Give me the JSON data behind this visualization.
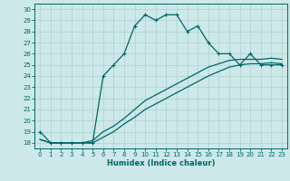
{
  "title": "",
  "xlabel": "Humidex (Indice chaleur)",
  "ylabel": "",
  "bg_color": "#cce8e8",
  "grid_color": "#b0d0d0",
  "line_color": "#006666",
  "xlim": [
    -0.5,
    23.5
  ],
  "ylim": [
    17.5,
    30.5
  ],
  "xticks": [
    0,
    1,
    2,
    3,
    4,
    5,
    6,
    7,
    8,
    9,
    10,
    11,
    12,
    13,
    14,
    15,
    16,
    17,
    18,
    19,
    20,
    21,
    22,
    23
  ],
  "yticks": [
    18,
    19,
    20,
    21,
    22,
    23,
    24,
    25,
    26,
    27,
    28,
    29,
    30
  ],
  "curve1_x": [
    0,
    1,
    2,
    3,
    4,
    5,
    6,
    7,
    8,
    9,
    10,
    11,
    12,
    13,
    14,
    15,
    16,
    17,
    18,
    19,
    20,
    21,
    22,
    23
  ],
  "curve1_y": [
    19.0,
    18.0,
    18.0,
    18.0,
    18.0,
    18.0,
    24.0,
    25.0,
    26.0,
    28.5,
    29.5,
    29.0,
    29.5,
    29.5,
    28.0,
    28.5,
    27.0,
    26.0,
    26.0,
    25.0,
    26.0,
    25.0,
    25.0,
    25.0
  ],
  "curve2_x": [
    0,
    1,
    2,
    3,
    4,
    5,
    6,
    7,
    8,
    9,
    10,
    11,
    12,
    13,
    14,
    15,
    16,
    17,
    18,
    19,
    20,
    21,
    22,
    23
  ],
  "curve2_y": [
    18.3,
    18.0,
    18.0,
    18.0,
    18.0,
    18.2,
    19.0,
    19.5,
    20.2,
    21.0,
    21.8,
    22.3,
    22.8,
    23.3,
    23.8,
    24.3,
    24.8,
    25.1,
    25.4,
    25.5,
    25.5,
    25.5,
    25.6,
    25.5
  ],
  "curve3_x": [
    0,
    1,
    2,
    3,
    4,
    5,
    6,
    7,
    8,
    9,
    10,
    11,
    12,
    13,
    14,
    15,
    16,
    17,
    18,
    19,
    20,
    21,
    22,
    23
  ],
  "curve3_y": [
    18.3,
    18.0,
    18.0,
    18.0,
    18.0,
    18.0,
    18.5,
    19.0,
    19.7,
    20.3,
    21.0,
    21.5,
    22.0,
    22.5,
    23.0,
    23.5,
    24.0,
    24.4,
    24.8,
    25.0,
    25.1,
    25.1,
    25.2,
    25.1
  ]
}
